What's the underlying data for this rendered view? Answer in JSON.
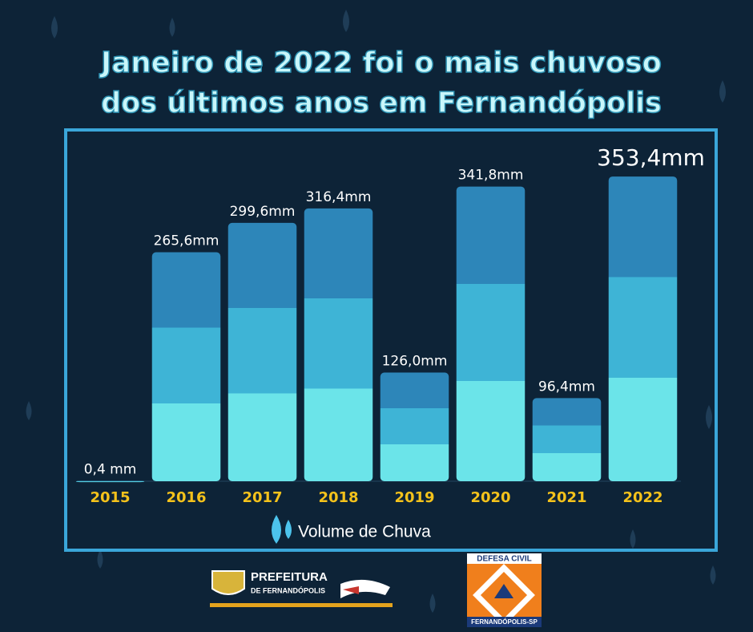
{
  "chart_data": {
    "type": "bar",
    "title": [
      "Janeiro de 2022 foi o mais chuvoso",
      "dos últimos anos em Fernandópolis"
    ],
    "categories": [
      "2015",
      "2016",
      "2017",
      "2018",
      "2019",
      "2020",
      "2021",
      "2022"
    ],
    "series": [
      {
        "name": "Volume de Chuva",
        "color": "#3eb4d6",
        "values": [
          0.4,
          265.6,
          299.6,
          316.4,
          126.0,
          341.8,
          96.4,
          353.4
        ],
        "value_labels": [
          "0,4 mm",
          "265,6mm",
          "299,6mm",
          "316,4mm",
          "126,0mm",
          "341,8mm",
          "96,4mm",
          "353,4mm"
        ]
      }
    ],
    "ylim": [
      0,
      400
    ]
  },
  "footer": {
    "prefeitura": [
      "PREFEITURA",
      "DE FERNANDÓPOLIS"
    ],
    "defesa_civil": [
      "DEFESA CIVIL",
      "FERNANDÓPOLIS-SP"
    ]
  }
}
